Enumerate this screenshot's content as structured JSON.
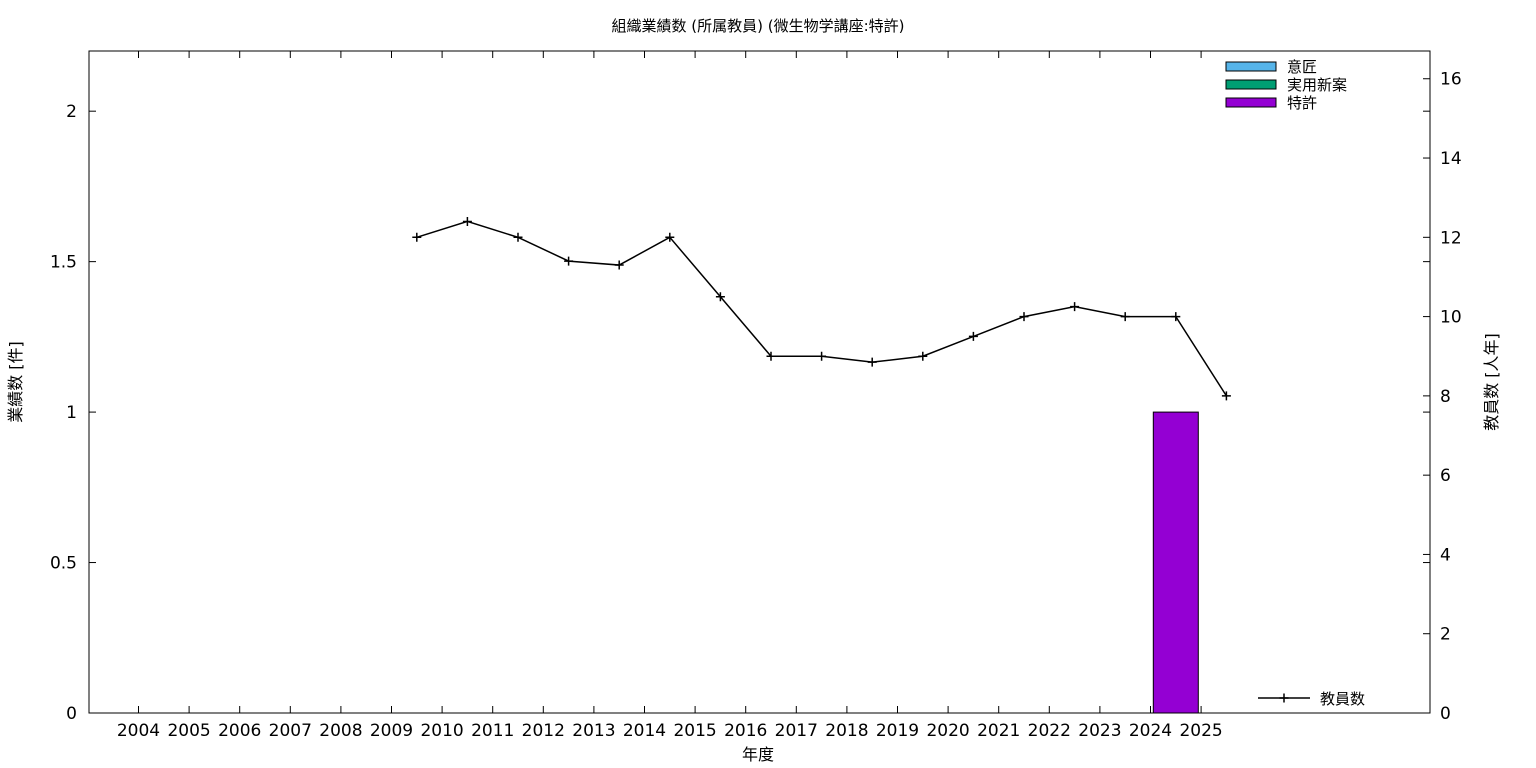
{
  "chart_data": {
    "type": "bar",
    "title": "組織業績数 (所属教員) (微生物学講座:特許)",
    "xlabel": "年度",
    "ylabel": "業績数 [件]",
    "y2label": "教員数 [人年]",
    "categories": [
      "2004",
      "2005",
      "2006",
      "2007",
      "2008",
      "2009",
      "2010",
      "2011",
      "2012",
      "2013",
      "2014",
      "2015",
      "2016",
      "2017",
      "2018",
      "2019",
      "2020",
      "2021",
      "2022",
      "2023",
      "2024",
      "2025"
    ],
    "ylim": [
      0,
      2.2
    ],
    "yticks": [
      "0",
      "0.5",
      "1",
      "1.5",
      "2"
    ],
    "y2lim": [
      0,
      16.7
    ],
    "y2ticks": [
      "0",
      "2",
      "4",
      "6",
      "8",
      "10",
      "12",
      "14",
      "16"
    ],
    "grid": false,
    "legend_position": "top-right",
    "series": [
      {
        "name": "意匠",
        "kind": "bar",
        "color": "#56b4e9",
        "values": [
          0,
          0,
          0,
          0,
          0,
          0,
          0,
          0,
          0,
          0,
          0,
          0,
          0,
          0,
          0,
          0,
          0,
          0,
          0,
          0,
          0,
          0
        ]
      },
      {
        "name": "実用新案",
        "kind": "bar",
        "color": "#009e73",
        "values": [
          0,
          0,
          0,
          0,
          0,
          0,
          0,
          0,
          0,
          0,
          0,
          0,
          0,
          0,
          0,
          0,
          0,
          0,
          0,
          0,
          0,
          0
        ]
      },
      {
        "name": "特許",
        "kind": "bar",
        "color": "#9400d3",
        "values": [
          0,
          0,
          0,
          0,
          0,
          0,
          0,
          0,
          0,
          0,
          0,
          0,
          0,
          0,
          0,
          0,
          0,
          0,
          0,
          0,
          1,
          0
        ]
      },
      {
        "name": "教員数",
        "kind": "line",
        "axis": "y2",
        "color": "#000000",
        "values": [
          null,
          null,
          null,
          null,
          null,
          12,
          12.4,
          12,
          11.4,
          11.3,
          12,
          10.5,
          9,
          9,
          8.85,
          9,
          9.5,
          10,
          10.25,
          10,
          10,
          8
        ]
      }
    ]
  }
}
